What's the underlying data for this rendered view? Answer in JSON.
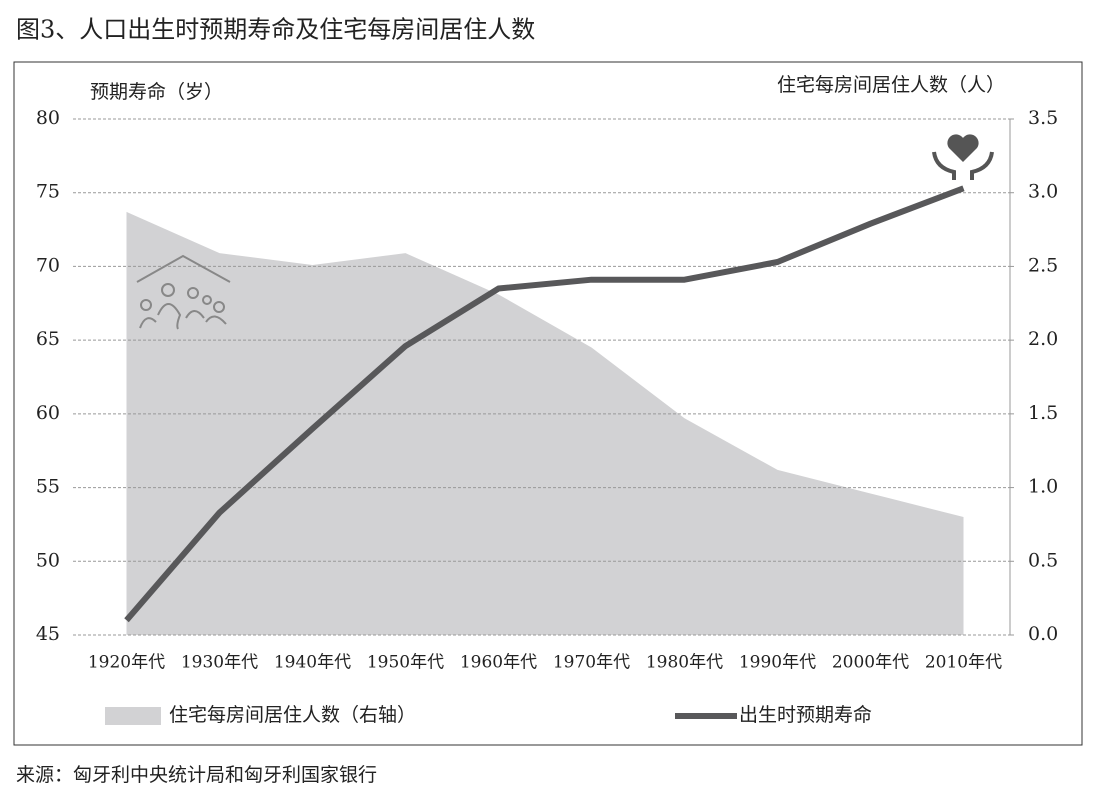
{
  "chart_data": {
    "type": "line",
    "title": "图3、人口出生时预期寿命及住宅每房间居住人数",
    "source": "来源：匈牙利中央统计局和匈牙利国家银行",
    "y_label": "预期寿命（岁）",
    "y2_label": "住宅每房间居住人数（人）",
    "categories": [
      "1920年代",
      "1930年代",
      "1940年代",
      "1950年代",
      "1960年代",
      "1970年代",
      "1980年代",
      "1990年代",
      "2000年代",
      "2010年代"
    ],
    "series": [
      {
        "name": "住宅每房间居住人数（右轴）",
        "type": "area",
        "axis": "y2",
        "color": "#d2d2d4",
        "values": [
          2.87,
          2.59,
          2.51,
          2.59,
          2.31,
          1.95,
          1.47,
          1.12,
          0.96,
          0.8
        ]
      },
      {
        "name": "出生时预期寿命",
        "type": "line",
        "color": "#58585a",
        "values": [
          46.0,
          53.3,
          59.0,
          64.6,
          68.5,
          69.1,
          69.1,
          70.3,
          72.9,
          75.3
        ]
      }
    ],
    "ylim": [
      45,
      80
    ],
    "yticks": [
      45,
      50,
      55,
      60,
      65,
      70,
      75,
      80
    ],
    "y2lim": [
      0,
      3.5
    ],
    "y2ticks": [
      {
        "value": 0,
        "label": "0.0"
      },
      0.5,
      {
        "value": 1,
        "label": "1.0"
      },
      1.5,
      {
        "value": 2,
        "label": "2.0"
      },
      2.5,
      {
        "value": 3,
        "label": "3.0"
      },
      3.5
    ],
    "grid": true
  }
}
